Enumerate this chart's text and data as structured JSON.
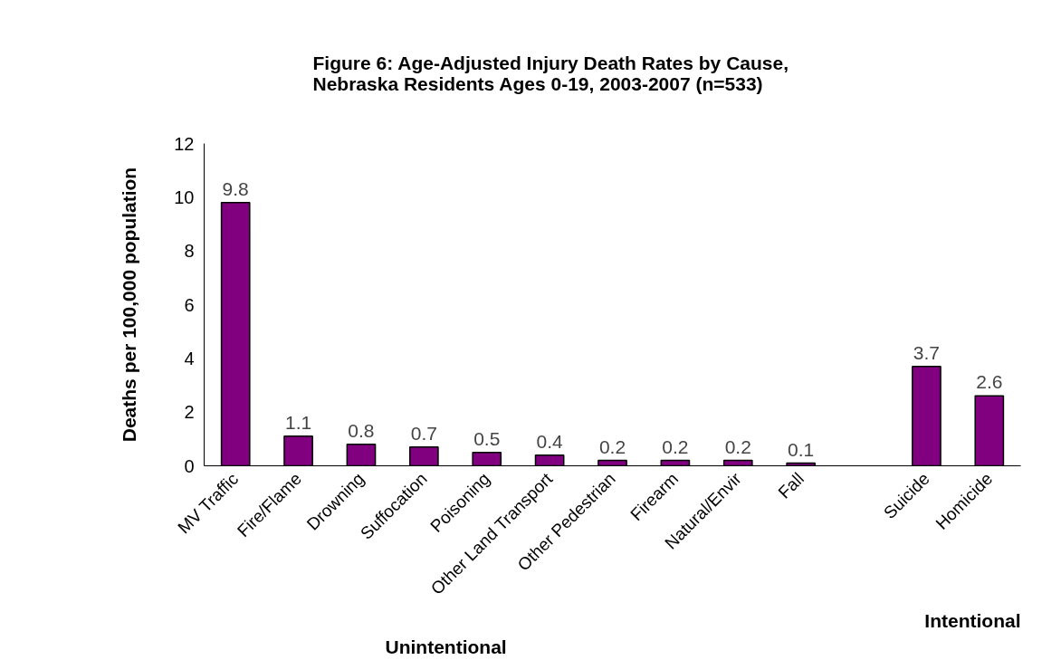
{
  "chart_data": {
    "type": "bar",
    "title": "Figure 6: Age-Adjusted Injury Death Rates by Cause,\nNebraska Residents Ages 0-19, 2003-2007 (n=533)",
    "ylabel": "Deaths per 100,000 population",
    "categories": [
      "MV Traffic",
      "Fire/Flame",
      "Drowning",
      "Suffocation",
      "Poisoning",
      "Other Land Transport",
      "Other Pedestrian",
      "Firearm",
      "Natural/Envir",
      "Fall",
      null,
      "Suicide",
      "Homicide"
    ],
    "values": [
      9.8,
      1.1,
      0.8,
      0.7,
      0.5,
      0.4,
      0.2,
      0.2,
      0.2,
      0.1,
      null,
      3.7,
      2.6
    ],
    "color": "#800080",
    "data_labels": true,
    "ylim": [
      0,
      12
    ],
    "yticks": [
      0,
      2,
      4,
      6,
      8,
      10,
      12
    ],
    "grid": false,
    "annotations": [
      "Unintentional",
      "Intentional"
    ]
  }
}
